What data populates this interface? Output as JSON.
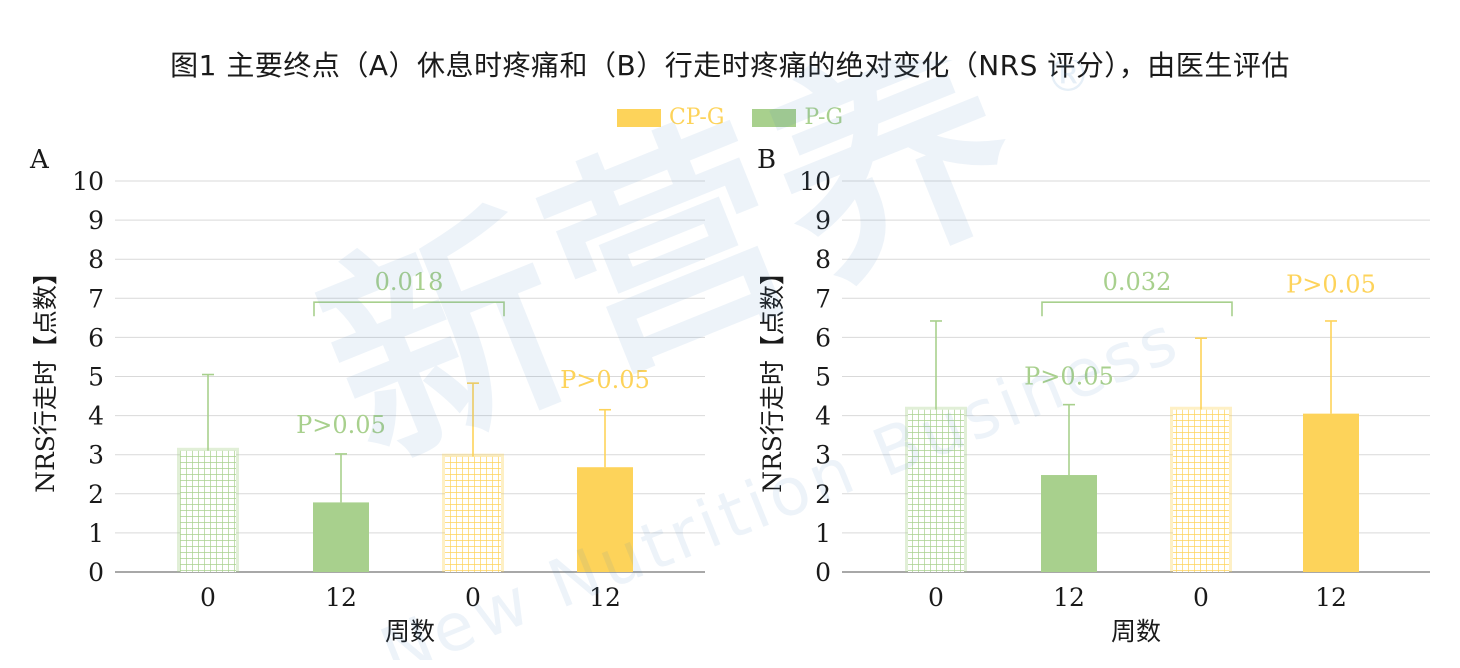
{
  "title": "图1 主要终点（A）休息时疼痛和（B）行走时疼痛的绝对变化（NRS 评分），由医生评估",
  "legend": [
    {
      "name": "CP-G",
      "color": "#FDD35A"
    },
    {
      "name": "P-G",
      "color": "#A8D08D"
    }
  ],
  "watermark": {
    "main": "新营养",
    "sub": "New Nutrition Business",
    "mark": "®"
  },
  "colors": {
    "green": "#A8D08D",
    "yellow": "#FDD35A",
    "axis": "#8c8c8c",
    "grid": "#d9d9d9"
  },
  "chart_data": [
    {
      "type": "bar",
      "panel_label": "A",
      "categories": [
        "0",
        "12",
        "0",
        "12"
      ],
      "values": [
        3.1,
        1.78,
        2.95,
        2.68
      ],
      "error_upper": [
        5.05,
        3.02,
        4.83,
        4.15
      ],
      "groups": [
        "P-G",
        "P-G",
        "CP-G",
        "CP-G"
      ],
      "hatched": [
        true,
        false,
        true,
        false
      ],
      "xlabel": "周数",
      "ylabel": "NRS行走时【点数】",
      "ylim": [
        0,
        10
      ],
      "yticks": [
        "0",
        "1",
        "2",
        "3",
        "4",
        "5",
        "6",
        "7",
        "8",
        "9",
        "10"
      ],
      "annotations": [
        {
          "text": "P>0.05",
          "bar": 1,
          "y": 3.55,
          "color": "green"
        },
        {
          "text": "P>0.05",
          "bar": 3,
          "y": 4.7,
          "color": "yellow"
        }
      ],
      "bracket": {
        "text": "0.018",
        "from": 1,
        "to": 2,
        "y": 6.9,
        "color": "green"
      }
    },
    {
      "type": "bar",
      "panel_label": "B",
      "categories": [
        "0",
        "12",
        "0",
        "12"
      ],
      "values": [
        4.15,
        2.48,
        4.15,
        4.05
      ],
      "error_upper": [
        6.42,
        4.28,
        5.98,
        6.42
      ],
      "groups": [
        "P-G",
        "P-G",
        "CP-G",
        "CP-G"
      ],
      "hatched": [
        true,
        false,
        true,
        false
      ],
      "xlabel": "周数",
      "ylabel": "NRS行走时【点数】",
      "ylim": [
        0,
        10
      ],
      "yticks": [
        "0",
        "1",
        "2",
        "3",
        "4",
        "5",
        "6",
        "7",
        "8",
        "9",
        "10"
      ],
      "annotations": [
        {
          "text": "P>0.05",
          "bar": 1,
          "y": 4.8,
          "color": "green"
        },
        {
          "text": "P>0.05",
          "bar": 3,
          "y": 7.15,
          "color": "yellow"
        }
      ],
      "bracket": {
        "text": "0.032",
        "from": 1,
        "to": 2,
        "y": 6.9,
        "color": "green"
      }
    }
  ]
}
